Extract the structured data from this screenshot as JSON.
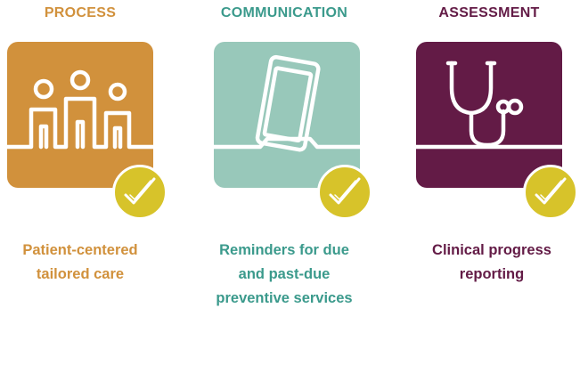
{
  "colors": {
    "process": "#d1913c",
    "communication": "#98c8ba",
    "communication_text": "#3b9a8c",
    "assessment": "#631b46",
    "check_badge": "#d7c32a"
  },
  "cards": [
    {
      "title": "PROCESS",
      "icon": "people-icon",
      "caption_lines": [
        "Patient-centered",
        "tailored care"
      ]
    },
    {
      "title": "COMMUNICATION",
      "icon": "mobile-phone-icon",
      "caption_lines": [
        "Reminders for due",
        "and past-due",
        "preventive services"
      ]
    },
    {
      "title": "ASSESSMENT",
      "icon": "stethoscope-icon",
      "caption_lines": [
        "Clinical progress",
        "reporting"
      ]
    }
  ]
}
